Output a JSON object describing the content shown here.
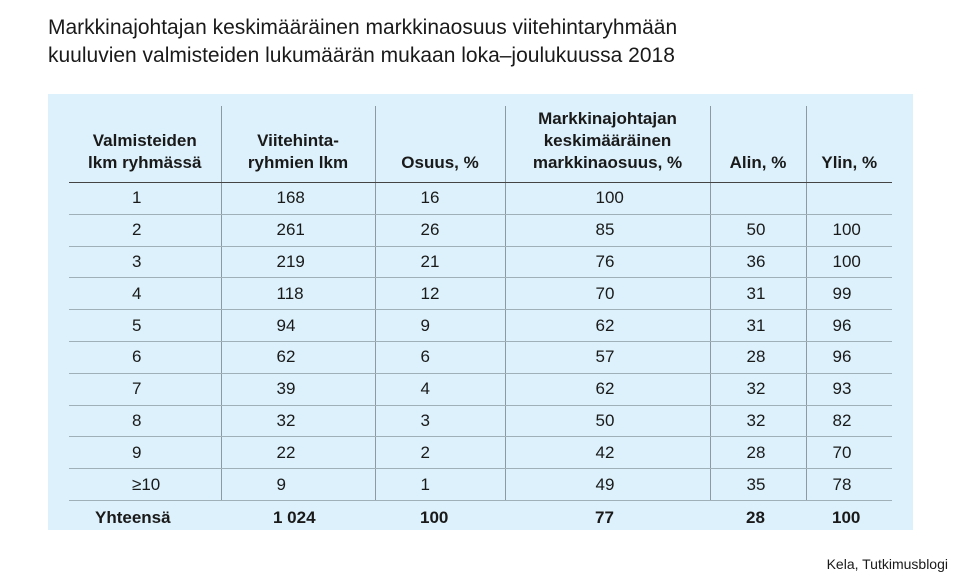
{
  "title_lines": [
    "Markkinajohtajan keskimääräinen markkinaosuus viitehintaryhmään",
    "kuuluvien valmisteiden lukumäärän mukaan loka–joulukuussa 2018"
  ],
  "source": "Kela, Tutkimusblogi",
  "chart_data": {
    "type": "table",
    "columns": [
      [
        "Valmisteiden",
        "lkm ryhmässä"
      ],
      [
        "Viitehinta-",
        "ryhmien lkm"
      ],
      [
        "Osuus, %"
      ],
      [
        "Markkinajohtajan",
        "keskimääräinen",
        "markkinaosuus, %"
      ],
      [
        "Alin, %"
      ],
      [
        "Ylin, %"
      ]
    ],
    "rows": [
      [
        "1",
        "168",
        "16",
        "100",
        "",
        ""
      ],
      [
        "2",
        "261",
        "26",
        "85",
        "50",
        "100"
      ],
      [
        "3",
        "219",
        "21",
        "76",
        "36",
        "100"
      ],
      [
        "4",
        "118",
        "12",
        "70",
        "31",
        "99"
      ],
      [
        "5",
        "94",
        "9",
        "62",
        "31",
        "96"
      ],
      [
        "6",
        "62",
        "6",
        "57",
        "28",
        "96"
      ],
      [
        "7",
        "39",
        "4",
        "62",
        "32",
        "93"
      ],
      [
        "8",
        "32",
        "3",
        "50",
        "32",
        "82"
      ],
      [
        "9",
        "22",
        "2",
        "42",
        "28",
        "70"
      ],
      [
        "≥10",
        "9",
        "1",
        "49",
        "35",
        "78"
      ]
    ],
    "total": [
      "Yhteensä",
      "1 024",
      "100",
      "77",
      "28",
      "100"
    ]
  }
}
